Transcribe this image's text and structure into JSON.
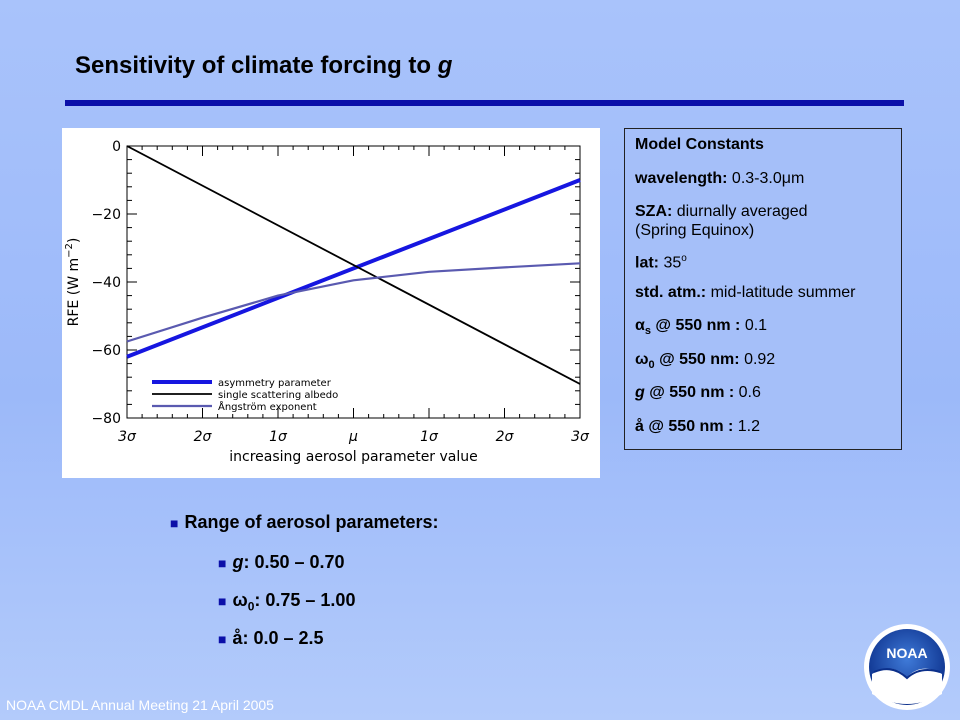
{
  "slide": {
    "title_prefix": "Sensitivity of climate forcing to ",
    "title_symbol": "g",
    "footer": "NOAA CMDL Annual Meeting 21 April 2005"
  },
  "logo": {
    "text": "NOAA",
    "icon": "noaa-seagull-logo"
  },
  "constants": {
    "heading": "Model Constants",
    "wavelength_label": "wavelength:",
    "wavelength_value": "0.3-3.0μm",
    "sza_label": "SZA:",
    "sza_value": "diurnally averaged",
    "sza_value2": "(Spring Equinox)",
    "lat_label": "lat:",
    "lat_value": "35",
    "lat_unit": "o",
    "atm_label": "std. atm.:",
    "atm_value": "mid-latitude summer",
    "alpha_sym": "α",
    "alpha_sub": "s",
    "alpha_label": " @ 550 nm :",
    "alpha_value": "0.1",
    "omega_sym": "ω",
    "omega_sub": "0",
    "omega_label": " @ 550 nm:",
    "omega_value": "0.92",
    "g_sym": "g",
    "g_label": " @ 550 nm :",
    "g_value": "0.6",
    "a_sym": "å",
    "a_label": " @ 550 nm :",
    "a_value": "1.2"
  },
  "ranges": {
    "heading": "Range of aerosol parameters:",
    "items": [
      {
        "sym": "g",
        "sub": "",
        "text": ": 0.50 – 0.70",
        "italic": true
      },
      {
        "sym": "ω",
        "sub": "0",
        "text": ": 0.75 – 1.00",
        "italic": false
      },
      {
        "sym": "å",
        "sub": "",
        "text": ": 0.0 – 2.5",
        "italic": false
      }
    ]
  },
  "chart_data": {
    "type": "line",
    "xlabel": "increasing aerosol parameter value",
    "ylabel": "RFE (W m",
    "ylabel_sup": "−2",
    "ylabel_close": ")",
    "xlim": [
      -3,
      3
    ],
    "ylim": [
      -80,
      0
    ],
    "x_ticks": [
      -3,
      -2,
      -1,
      0,
      1,
      2,
      3
    ],
    "x_tick_labels": [
      "3σ",
      "2σ",
      "1σ",
      "μ",
      "1σ",
      "2σ",
      "3σ"
    ],
    "y_ticks": [
      0,
      -20,
      -40,
      -60,
      -80
    ],
    "y_tick_labels": [
      "0",
      "−20",
      "−40",
      "−60",
      "−80"
    ],
    "legend_position": "bottom-left",
    "series": [
      {
        "name": "asymmetry parameter",
        "color": "#1616e0",
        "x": [
          -3,
          3
        ],
        "y": [
          -62,
          -10
        ]
      },
      {
        "name": "single scattering albedo",
        "color": "#000000",
        "x": [
          -3,
          3
        ],
        "y": [
          0,
          -70
        ]
      },
      {
        "name": "Ångström exponent",
        "color": "#5a5ab0",
        "x": [
          -3,
          -2,
          -1,
          0,
          1,
          2,
          3
        ],
        "y": [
          -57.5,
          -50.5,
          -44,
          -39.5,
          -37,
          -35.7,
          -34.5
        ]
      }
    ]
  }
}
